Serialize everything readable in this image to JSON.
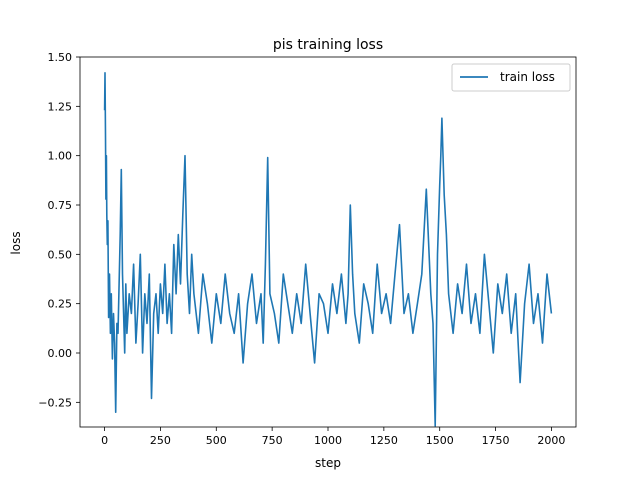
{
  "chart_data": {
    "type": "line",
    "title": "pis training loss",
    "xlabel": "step",
    "ylabel": "loss",
    "xlim": [
      -110,
      2110
    ],
    "ylim": [
      -0.375,
      1.5
    ],
    "xticks": [
      0,
      250,
      500,
      750,
      1000,
      1250,
      1500,
      1750,
      2000
    ],
    "xtick_labels": [
      "0",
      "250",
      "500",
      "750",
      "1000",
      "1250",
      "1500",
      "1750",
      "2000"
    ],
    "yticks": [
      -0.25,
      0.0,
      0.25,
      0.5,
      0.75,
      1.0,
      1.25,
      1.5
    ],
    "ytick_labels": [
      "−0.25",
      "0.00",
      "0.25",
      "0.50",
      "0.75",
      "1.00",
      "1.25",
      "1.50"
    ],
    "grid": false,
    "legend_position": "top-right",
    "color": "#1f77b4",
    "series": [
      {
        "name": "train loss",
        "x": [
          0,
          2,
          4,
          6,
          8,
          10,
          12,
          15,
          18,
          22,
          26,
          30,
          35,
          40,
          45,
          50,
          55,
          60,
          65,
          70,
          75,
          80,
          85,
          90,
          95,
          100,
          110,
          120,
          130,
          140,
          150,
          160,
          170,
          180,
          190,
          200,
          210,
          220,
          230,
          240,
          250,
          260,
          270,
          280,
          290,
          300,
          310,
          320,
          330,
          340,
          350,
          360,
          370,
          380,
          390,
          400,
          420,
          440,
          460,
          480,
          500,
          520,
          540,
          560,
          580,
          600,
          620,
          640,
          660,
          680,
          700,
          710,
          720,
          730,
          740,
          760,
          780,
          800,
          820,
          840,
          860,
          880,
          900,
          920,
          940,
          960,
          980,
          1000,
          1020,
          1040,
          1060,
          1080,
          1090,
          1100,
          1110,
          1120,
          1140,
          1160,
          1180,
          1200,
          1220,
          1240,
          1260,
          1280,
          1300,
          1320,
          1340,
          1360,
          1380,
          1400,
          1420,
          1440,
          1460,
          1470,
          1480,
          1490,
          1500,
          1505,
          1510,
          1520,
          1530,
          1540,
          1560,
          1580,
          1600,
          1620,
          1640,
          1660,
          1680,
          1700,
          1720,
          1740,
          1760,
          1780,
          1800,
          1820,
          1840,
          1860,
          1880,
          1900,
          1920,
          1940,
          1960,
          1980,
          2000
        ],
        "y": [
          1.23,
          1.42,
          1.1,
          0.78,
          1.0,
          0.7,
          0.55,
          0.67,
          0.18,
          0.4,
          0.1,
          0.3,
          -0.03,
          0.2,
          0.05,
          -0.3,
          0.15,
          0.1,
          0.35,
          0.6,
          0.93,
          0.4,
          0.2,
          0.0,
          0.35,
          0.1,
          0.3,
          0.2,
          0.45,
          0.05,
          0.25,
          0.5,
          0.0,
          0.3,
          0.15,
          0.4,
          -0.23,
          0.2,
          0.3,
          0.1,
          0.35,
          0.2,
          0.45,
          0.15,
          0.3,
          0.1,
          0.55,
          0.3,
          0.6,
          0.35,
          0.7,
          1.0,
          0.4,
          0.2,
          0.5,
          0.3,
          0.1,
          0.4,
          0.25,
          0.05,
          0.3,
          0.15,
          0.4,
          0.2,
          0.1,
          0.3,
          -0.05,
          0.25,
          0.4,
          0.15,
          0.3,
          0.05,
          0.45,
          0.99,
          0.3,
          0.2,
          0.05,
          0.4,
          0.25,
          0.1,
          0.3,
          0.15,
          0.45,
          0.2,
          -0.05,
          0.3,
          0.25,
          0.1,
          0.35,
          0.2,
          0.4,
          0.15,
          0.3,
          0.75,
          0.4,
          0.2,
          0.05,
          0.35,
          0.25,
          0.1,
          0.45,
          0.2,
          0.3,
          0.15,
          0.4,
          0.65,
          0.2,
          0.3,
          0.1,
          0.25,
          0.4,
          0.83,
          0.3,
          0.15,
          -0.37,
          0.5,
          0.85,
          1.0,
          1.19,
          0.8,
          0.6,
          0.3,
          0.1,
          0.35,
          0.2,
          0.45,
          0.15,
          0.3,
          0.1,
          0.5,
          0.25,
          0.0,
          0.35,
          0.2,
          0.4,
          0.1,
          0.3,
          -0.15,
          0.25,
          0.45,
          0.15,
          0.3,
          0.05,
          0.4,
          0.2
        ]
      }
    ]
  }
}
